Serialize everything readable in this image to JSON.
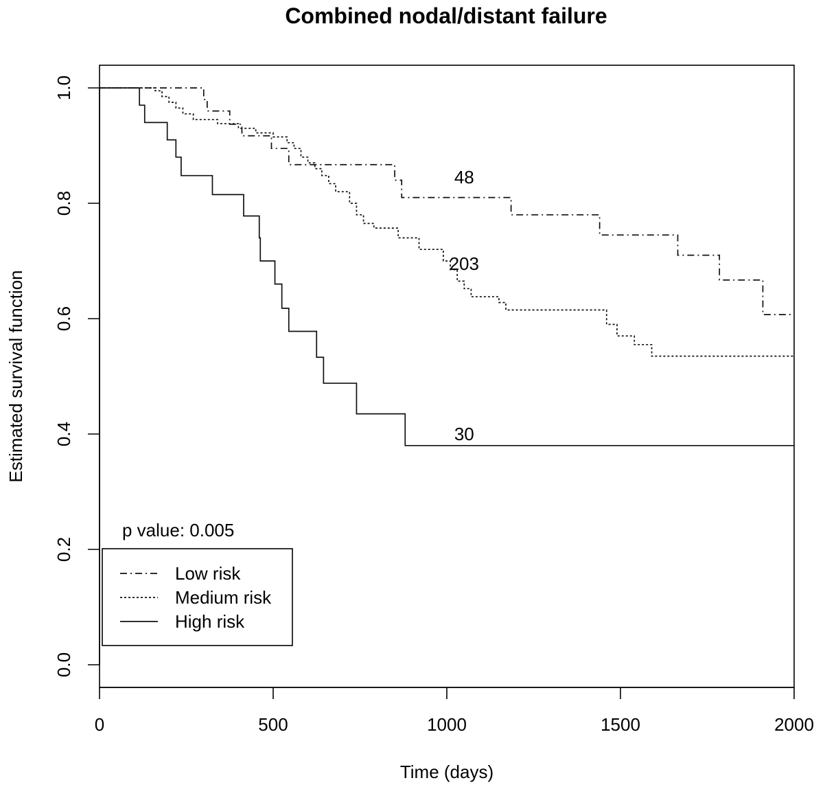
{
  "chart_data": {
    "type": "line",
    "subtype": "kaplan-meier step curves",
    "title": "Combined nodal/distant failure",
    "xlabel": "Time (days)",
    "ylabel": "Estimated survival function",
    "xlim": [
      0,
      2000
    ],
    "ylim": [
      0,
      1.0
    ],
    "x_ticks": [
      "0",
      "500",
      "1000",
      "1500",
      "2000"
    ],
    "x_tick_values": [
      0,
      500,
      1000,
      1500,
      2000
    ],
    "y_ticks": [
      "0.0",
      "0.2",
      "0.4",
      "0.6",
      "0.8",
      "1.0"
    ],
    "y_tick_values": [
      0,
      0.2,
      0.4,
      0.6,
      0.8,
      1.0
    ],
    "grid": false,
    "legend_position": "bottom-left",
    "annotation": "p value: 0.005",
    "series": [
      {
        "name": "Low risk",
        "style": "dashdot",
        "count_label": "48",
        "label_at": [
          1050,
          0.845
        ],
        "steps": [
          [
            0,
            1.0
          ],
          [
            300,
            0.98
          ],
          [
            310,
            0.96
          ],
          [
            375,
            0.937
          ],
          [
            410,
            0.917
          ],
          [
            495,
            0.895
          ],
          [
            545,
            0.867
          ],
          [
            850,
            0.84
          ],
          [
            870,
            0.81
          ],
          [
            1185,
            0.78
          ],
          [
            1440,
            0.745
          ],
          [
            1665,
            0.71
          ],
          [
            1785,
            0.667
          ],
          [
            1910,
            0.607
          ],
          [
            2000,
            0.607
          ]
        ]
      },
      {
        "name": "Medium risk",
        "style": "dotted",
        "count_label": "203",
        "label_at": [
          1050,
          0.695
        ],
        "steps": [
          [
            0,
            1.0
          ],
          [
            160,
            0.995
          ],
          [
            180,
            0.985
          ],
          [
            200,
            0.975
          ],
          [
            220,
            0.965
          ],
          [
            240,
            0.955
          ],
          [
            270,
            0.945
          ],
          [
            340,
            0.938
          ],
          [
            400,
            0.93
          ],
          [
            450,
            0.922
          ],
          [
            500,
            0.915
          ],
          [
            540,
            0.905
          ],
          [
            560,
            0.895
          ],
          [
            580,
            0.88
          ],
          [
            600,
            0.87
          ],
          [
            620,
            0.86
          ],
          [
            640,
            0.848
          ],
          [
            660,
            0.834
          ],
          [
            680,
            0.82
          ],
          [
            720,
            0.8
          ],
          [
            740,
            0.78
          ],
          [
            760,
            0.765
          ],
          [
            790,
            0.757
          ],
          [
            860,
            0.74
          ],
          [
            920,
            0.72
          ],
          [
            990,
            0.7
          ],
          [
            1010,
            0.685
          ],
          [
            1030,
            0.665
          ],
          [
            1050,
            0.652
          ],
          [
            1070,
            0.638
          ],
          [
            1150,
            0.628
          ],
          [
            1170,
            0.615
          ],
          [
            1460,
            0.59
          ],
          [
            1490,
            0.57
          ],
          [
            1540,
            0.555
          ],
          [
            1590,
            0.535
          ],
          [
            2000,
            0.535
          ]
        ]
      },
      {
        "name": "High risk",
        "style": "solid",
        "count_label": "30",
        "label_at": [
          1050,
          0.4
        ],
        "steps": [
          [
            0,
            1.0
          ],
          [
            115,
            0.97
          ],
          [
            130,
            0.94
          ],
          [
            195,
            0.91
          ],
          [
            220,
            0.88
          ],
          [
            235,
            0.848
          ],
          [
            325,
            0.815
          ],
          [
            415,
            0.778
          ],
          [
            460,
            0.74
          ],
          [
            463,
            0.7
          ],
          [
            505,
            0.66
          ],
          [
            525,
            0.618
          ],
          [
            545,
            0.578
          ],
          [
            625,
            0.533
          ],
          [
            645,
            0.488
          ],
          [
            740,
            0.435
          ],
          [
            880,
            0.38
          ],
          [
            2000,
            0.38
          ]
        ]
      }
    ]
  }
}
